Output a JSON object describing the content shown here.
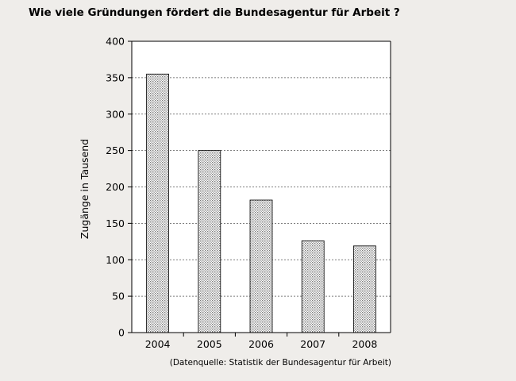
{
  "chart_data": {
    "type": "bar",
    "title": "Wie viele Gründungen fördert die Bundesagentur für Arbeit ?",
    "ylabel": "Zugänge in Tausend",
    "xlabel": "",
    "categories": [
      "2004",
      "2005",
      "2006",
      "2007",
      "2008"
    ],
    "values": [
      355,
      250,
      182,
      126,
      119
    ],
    "ylim": [
      0,
      400
    ],
    "yticks": [
      "0",
      "50",
      "100",
      "150",
      "200",
      "250",
      "300",
      "350",
      "400"
    ],
    "grid": "horizontal dashed",
    "source": "(Datenquelle: Statistik der Bundesagentur für Arbeit)"
  },
  "colors": {
    "background": "#efedea",
    "plot_background": "#ffffff",
    "bar_pattern_dark": "#8a8a8a",
    "bar_pattern_light": "#ffffff"
  }
}
